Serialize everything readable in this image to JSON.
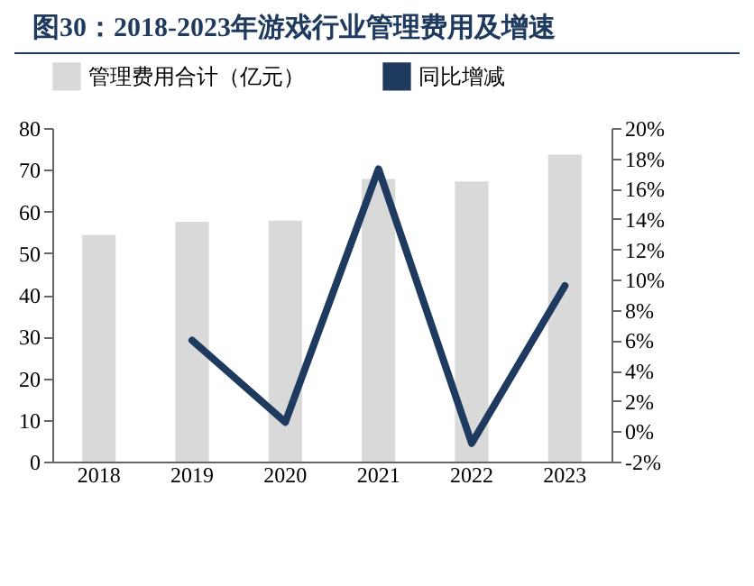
{
  "chart_data": {
    "type": "bar",
    "title": "图30：2018-2023年游戏行业管理费用及增速",
    "categories": [
      "2018",
      "2019",
      "2020",
      "2021",
      "2022",
      "2023"
    ],
    "series": [
      {
        "name": "管理费用合计（亿元）",
        "color": "#d9d9d9",
        "values": [
          54.3,
          57.5,
          57.8,
          67.8,
          67.2,
          73.6
        ]
      },
      {
        "name": "同比增减",
        "type": "line",
        "axis": "y2",
        "color": "#1f3a5f",
        "values": [
          null,
          6.0,
          0.6,
          17.3,
          -0.8,
          9.6
        ]
      }
    ],
    "ylim": [
      0,
      80
    ],
    "yticks": [
      0,
      10,
      20,
      30,
      40,
      50,
      60,
      70,
      80
    ],
    "y2lim": [
      -2,
      20
    ],
    "y2ticks": [
      {
        "value": -2,
        "label": "-2%"
      },
      {
        "value": 0,
        "label": "0%"
      },
      {
        "value": 2,
        "label": "2%"
      },
      {
        "value": 4,
        "label": "4%"
      },
      {
        "value": 6,
        "label": "6%"
      },
      {
        "value": 8,
        "label": "8%"
      },
      {
        "value": 10,
        "label": "10%"
      },
      {
        "value": 12,
        "label": "12%"
      },
      {
        "value": 14,
        "label": "14%"
      },
      {
        "value": 16,
        "label": "16%"
      },
      {
        "value": 18,
        "label": "18%"
      },
      {
        "value": 20,
        "label": "20%"
      }
    ],
    "legend": "top",
    "grid": false
  }
}
